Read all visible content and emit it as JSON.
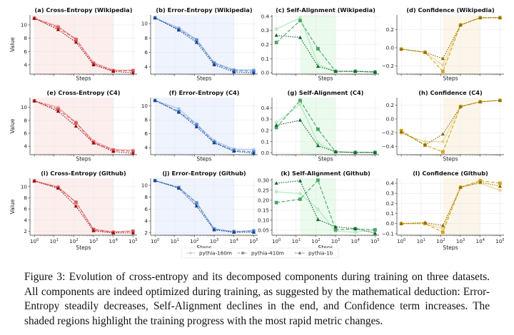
{
  "caption": "Figure 3: Evolution of cross-entropy and its decomposed components during training on three datasets. All components are indeed optimized during training, as suggested by the mathematical deduction: Error-Entropy steadily decreases, Self-Alignment declines in the end, and Confidence term increases. The shaded regions highlight the training progress with the most rapid metric changes.",
  "legend": {
    "position": "bottom-center",
    "entries": [
      "pythia-160m",
      "pythia-410m",
      "pythia-1b"
    ]
  },
  "chart_data": [
    {
      "type": "line",
      "title": "(a) Cross-Entropy (Wikipedia)",
      "xlabel": "Steps",
      "ylabel": "Value",
      "xscale": "log",
      "x": [
        1,
        16,
        128,
        1000,
        10000,
        100000
      ],
      "xlim": [
        0.6,
        160000
      ],
      "ylim": [
        2.6,
        11.5
      ],
      "yticks": [
        4,
        6,
        8,
        10
      ],
      "ytick_labels": [
        "4",
        "6",
        "8",
        "10"
      ],
      "show_xtick_labels": false,
      "shade": [
        1,
        10000
      ],
      "palette": "red",
      "series": [
        {
          "name": "pythia-160m",
          "values": [
            11.0,
            9.8,
            7.9,
            4.3,
            3.2,
            3.2
          ]
        },
        {
          "name": "pythia-410m",
          "values": [
            11.0,
            9.6,
            7.8,
            4.2,
            3.1,
            3.1
          ]
        },
        {
          "name": "pythia-1b",
          "values": [
            11.0,
            9.3,
            7.4,
            4.0,
            3.0,
            2.8
          ]
        }
      ]
    },
    {
      "type": "line",
      "title": "(b) Error-Entropy (Wikipedia)",
      "xlabel": "Steps",
      "ylabel": "",
      "xscale": "log",
      "x": [
        1,
        16,
        128,
        1000,
        10000,
        100000
      ],
      "xlim": [
        0.6,
        160000
      ],
      "ylim": [
        3.0,
        11.2
      ],
      "yticks": [
        4,
        6,
        8,
        10
      ],
      "ytick_labels": [
        "4",
        "6",
        "8",
        "10"
      ],
      "show_xtick_labels": false,
      "shade": [
        1,
        10000
      ],
      "palette": "blue",
      "series": [
        {
          "name": "pythia-160m",
          "values": [
            10.8,
            9.4,
            7.8,
            4.6,
            3.6,
            3.6
          ]
        },
        {
          "name": "pythia-410m",
          "values": [
            10.8,
            9.2,
            7.7,
            4.5,
            3.5,
            3.4
          ]
        },
        {
          "name": "pythia-1b",
          "values": [
            10.8,
            9.1,
            7.4,
            4.3,
            3.3,
            3.2
          ]
        }
      ]
    },
    {
      "type": "line",
      "title": "(c) Self-Alignment (Wikipedia)",
      "xlabel": "Steps",
      "ylabel": "",
      "xscale": "log",
      "x": [
        1,
        16,
        128,
        1000,
        10000,
        100000
      ],
      "xlim": [
        0.6,
        160000
      ],
      "ylim": [
        -0.01,
        0.41
      ],
      "yticks": [
        0,
        0.1,
        0.2,
        0.3,
        0.4
      ],
      "ytick_labels": [
        "0.0",
        "0.1",
        "0.2",
        "0.3",
        "0.4"
      ],
      "show_xtick_labels": false,
      "shade": [
        16,
        1000
      ],
      "palette": "green",
      "series": [
        {
          "name": "pythia-160m",
          "values": [
            0.31,
            0.39,
            0.06,
            0.01,
            0.01,
            0.005
          ]
        },
        {
          "name": "pythia-410m",
          "values": [
            0.215,
            0.37,
            0.17,
            0.01,
            0.01,
            0.005
          ]
        },
        {
          "name": "pythia-1b",
          "values": [
            0.265,
            0.25,
            0.045,
            0.01,
            0.01,
            0.005
          ]
        }
      ]
    },
    {
      "type": "line",
      "title": "(d) Confidence (Wikipedia)",
      "xlabel": "Steps",
      "ylabel": "",
      "xscale": "log",
      "x": [
        1,
        16,
        128,
        1000,
        10000,
        100000
      ],
      "xlim": [
        0.6,
        160000
      ],
      "ylim": [
        -0.29,
        0.36
      ],
      "yticks": [
        -0.2,
        0,
        0.2
      ],
      "ytick_labels": [
        "−0.2",
        "0.0",
        "0.2"
      ],
      "show_xtick_labels": false,
      "shade": [
        128,
        10000
      ],
      "palette": "gold",
      "series": [
        {
          "name": "pythia-160m",
          "values": [
            -0.015,
            -0.05,
            -0.19,
            0.25,
            0.33,
            0.33
          ]
        },
        {
          "name": "pythia-410m",
          "values": [
            -0.015,
            -0.05,
            -0.26,
            0.25,
            0.33,
            0.33
          ]
        },
        {
          "name": "pythia-1b",
          "values": [
            -0.015,
            -0.05,
            -0.12,
            0.25,
            0.33,
            0.33
          ]
        }
      ]
    },
    {
      "type": "line",
      "title": "(e) Cross-Entropy (C4)",
      "xlabel": "Steps",
      "ylabel": "Value",
      "xscale": "log",
      "x": [
        1,
        16,
        128,
        1000,
        10000,
        100000
      ],
      "xlim": [
        0.6,
        160000
      ],
      "ylim": [
        2.7,
        11.5
      ],
      "yticks": [
        4,
        6,
        8,
        10
      ],
      "ytick_labels": [
        "4",
        "6",
        "8",
        "10"
      ],
      "show_xtick_labels": false,
      "shade": [
        1,
        10000
      ],
      "palette": "red",
      "series": [
        {
          "name": "pythia-160m",
          "values": [
            11.0,
            10.0,
            7.7,
            4.8,
            3.5,
            3.4
          ]
        },
        {
          "name": "pythia-410m",
          "values": [
            11.0,
            9.7,
            7.6,
            4.6,
            3.4,
            3.2
          ]
        },
        {
          "name": "pythia-1b",
          "values": [
            11.0,
            9.4,
            7.1,
            4.5,
            3.2,
            2.9
          ]
        }
      ]
    },
    {
      "type": "line",
      "title": "(f) Error-Entropy (C4)",
      "xlabel": "Steps",
      "ylabel": "",
      "xscale": "log",
      "x": [
        1,
        16,
        128,
        1000,
        10000,
        100000
      ],
      "xlim": [
        0.6,
        160000
      ],
      "ylim": [
        3.0,
        11.2
      ],
      "yticks": [
        4,
        6,
        8,
        10
      ],
      "ytick_labels": [
        "4",
        "6",
        "8",
        "10"
      ],
      "show_xtick_labels": false,
      "shade": [
        1,
        10000
      ],
      "palette": "blue",
      "series": [
        {
          "name": "pythia-160m",
          "values": [
            10.8,
            9.6,
            7.4,
            5.0,
            3.8,
            3.7
          ]
        },
        {
          "name": "pythia-410m",
          "values": [
            10.8,
            9.2,
            7.3,
            4.8,
            3.6,
            3.4
          ]
        },
        {
          "name": "pythia-1b",
          "values": [
            10.8,
            9.1,
            7.0,
            4.7,
            3.5,
            3.2
          ]
        }
      ]
    },
    {
      "type": "line",
      "title": "(g) Self-Alignment (C4)",
      "xlabel": "Steps",
      "ylabel": "",
      "xscale": "log",
      "x": [
        1,
        16,
        128,
        1000,
        10000,
        100000
      ],
      "xlim": [
        0.6,
        160000
      ],
      "ylim": [
        -0.015,
        0.49
      ],
      "yticks": [
        0,
        0.1,
        0.2,
        0.3,
        0.4
      ],
      "ytick_labels": [
        "0.0",
        "0.1",
        "0.2",
        "0.3",
        "0.4"
      ],
      "show_xtick_labels": false,
      "shade": [
        16,
        1000
      ],
      "palette": "green",
      "series": [
        {
          "name": "pythia-160m",
          "values": [
            0.27,
            0.43,
            0.09,
            0.01,
            0.005,
            0.005
          ]
        },
        {
          "name": "pythia-410m",
          "values": [
            0.225,
            0.465,
            0.21,
            0.01,
            0.005,
            0.005
          ]
        },
        {
          "name": "pythia-1b",
          "values": [
            0.245,
            0.29,
            0.065,
            0.01,
            0.005,
            0.005
          ]
        }
      ]
    },
    {
      "type": "line",
      "title": "(h) Confidence (C4)",
      "xlabel": "Steps",
      "ylabel": "",
      "xscale": "log",
      "x": [
        1,
        16,
        128,
        1000,
        10000,
        100000
      ],
      "xlim": [
        0.6,
        160000
      ],
      "ylim": [
        -0.52,
        0.31
      ],
      "yticks": [
        -0.4,
        -0.2,
        0,
        0.2
      ],
      "ytick_labels": [
        "−0.4",
        "−0.2",
        "0.0",
        "0.2"
      ],
      "show_xtick_labels": false,
      "shade": [
        128,
        10000
      ],
      "palette": "gold",
      "series": [
        {
          "name": "pythia-160m",
          "values": [
            -0.21,
            -0.33,
            -0.33,
            0.18,
            0.25,
            0.27
          ]
        },
        {
          "name": "pythia-410m",
          "values": [
            -0.17,
            -0.38,
            -0.48,
            0.18,
            0.25,
            0.27
          ]
        },
        {
          "name": "pythia-1b",
          "values": [
            -0.19,
            -0.38,
            -0.22,
            0.18,
            0.25,
            0.27
          ]
        }
      ]
    },
    {
      "type": "line",
      "title": "(i) Cross-Entropy (Github)",
      "xlabel": "Steps",
      "ylabel": "Value",
      "xscale": "log",
      "x": [
        1,
        16,
        128,
        1000,
        10000,
        100000
      ],
      "xlim": [
        0.6,
        160000
      ],
      "ylim": [
        1.3,
        11.5
      ],
      "yticks": [
        2,
        4,
        6,
        8,
        10
      ],
      "ytick_labels": [
        "2",
        "4",
        "6",
        "8",
        "10"
      ],
      "show_xtick_labels": true,
      "xtick_labels": [
        "10^0",
        "10^1",
        "10^2",
        "10^3",
        "10^4",
        "10^5"
      ],
      "shade": [
        1,
        10000
      ],
      "palette": "red",
      "series": [
        {
          "name": "pythia-160m",
          "values": [
            11.0,
            10.0,
            7.2,
            2.4,
            1.9,
            2.1
          ]
        },
        {
          "name": "pythia-410m",
          "values": [
            11.0,
            9.8,
            7.2,
            2.3,
            1.8,
            2.0
          ]
        },
        {
          "name": "pythia-1b",
          "values": [
            11.0,
            9.7,
            6.5,
            2.1,
            1.7,
            1.7
          ]
        }
      ]
    },
    {
      "type": "line",
      "title": "(j) Error-Entropy (Github)",
      "xlabel": "Steps",
      "ylabel": "",
      "xscale": "log",
      "x": [
        1,
        16,
        128,
        1000,
        10000,
        100000
      ],
      "xlim": [
        0.6,
        160000
      ],
      "ylim": [
        1.6,
        11.2
      ],
      "yticks": [
        2,
        4,
        6,
        8,
        10
      ],
      "ytick_labels": [
        "2",
        "4",
        "6",
        "8",
        "10"
      ],
      "show_xtick_labels": true,
      "xtick_labels": [
        "10^0",
        "10^1",
        "10^2",
        "10^3",
        "10^4",
        "10^5"
      ],
      "shade": [
        1,
        10000
      ],
      "palette": "blue",
      "series": [
        {
          "name": "pythia-160m",
          "values": [
            10.8,
            9.7,
            7.1,
            2.7,
            2.2,
            2.4
          ]
        },
        {
          "name": "pythia-410m",
          "values": [
            10.8,
            9.6,
            7.0,
            2.6,
            2.2,
            2.3
          ]
        },
        {
          "name": "pythia-1b",
          "values": [
            10.8,
            9.5,
            6.5,
            2.5,
            2.1,
            2.1
          ]
        }
      ]
    },
    {
      "type": "line",
      "title": "(k) Self-Alignment (Github)",
      "xlabel": "Steps",
      "ylabel": "",
      "xscale": "log",
      "x": [
        1,
        16,
        128,
        1000,
        10000,
        100000
      ],
      "xlim": [
        0.6,
        160000
      ],
      "ylim": [
        0.025,
        0.31
      ],
      "yticks": [
        0.05,
        0.1,
        0.15,
        0.2,
        0.25,
        0.3
      ],
      "ytick_labels": [
        "0.05",
        "0.10",
        "0.15",
        "0.20",
        "0.25",
        "0.30"
      ],
      "show_xtick_labels": true,
      "xtick_labels": [
        "10^0",
        "10^1",
        "10^2",
        "10^3",
        "10^4",
        "10^5"
      ],
      "shade": [
        16,
        1000
      ],
      "palette": "green",
      "series": [
        {
          "name": "pythia-160m",
          "values": [
            0.242,
            0.233,
            0.155,
            0.045,
            0.04,
            0.05
          ]
        },
        {
          "name": "pythia-410m",
          "values": [
            0.188,
            0.205,
            0.3,
            0.052,
            0.057,
            0.052
          ]
        },
        {
          "name": "pythia-1b",
          "values": [
            0.285,
            0.297,
            0.103,
            0.067,
            0.058,
            0.035
          ]
        }
      ]
    },
    {
      "type": "line",
      "title": "(l) Confidence (Github)",
      "xlabel": "Steps",
      "ylabel": "",
      "xscale": "log",
      "x": [
        1,
        16,
        128,
        1000,
        10000,
        100000
      ],
      "xlim": [
        0.6,
        160000
      ],
      "ylim": [
        -0.115,
        0.45
      ],
      "yticks": [
        -0.1,
        0,
        0.1,
        0.2,
        0.3,
        0.4
      ],
      "ytick_labels": [
        "−0.1",
        "0.0",
        "0.1",
        "0.2",
        "0.3",
        "0.4"
      ],
      "show_xtick_labels": true,
      "xtick_labels": [
        "10^0",
        "10^1",
        "10^2",
        "10^3",
        "10^4",
        "10^5"
      ],
      "shade": [
        128,
        10000
      ],
      "palette": "gold",
      "series": [
        {
          "name": "pythia-160m",
          "values": [
            0.0,
            0.0,
            -0.05,
            0.36,
            0.4,
            0.33
          ]
        },
        {
          "name": "pythia-410m",
          "values": [
            0.0,
            0.0,
            -0.085,
            0.36,
            0.425,
            0.4
          ]
        },
        {
          "name": "pythia-1b",
          "values": [
            0.0,
            0.01,
            -0.02,
            0.36,
            0.41,
            0.37
          ]
        }
      ]
    }
  ],
  "palettes": {
    "red": {
      "shade": "#fdeeee",
      "lines": [
        "#f2a6a6",
        "#d9605e",
        "#8e0e12"
      ]
    },
    "blue": {
      "shade": "#eef3fd",
      "lines": [
        "#a9c4ec",
        "#5d8cd0",
        "#173f86"
      ]
    },
    "green": {
      "shade": "#eafaec",
      "lines": [
        "#b5ecc0",
        "#4aa466",
        "#13612d"
      ]
    },
    "gold": {
      "shade": "#fcf6ea",
      "lines": [
        "#ecd79a",
        "#d4a415",
        "#8a6a05"
      ]
    }
  },
  "legend_colors": [
    "#cfcfcf",
    "#8d8d8d",
    "#5a5a5a"
  ]
}
